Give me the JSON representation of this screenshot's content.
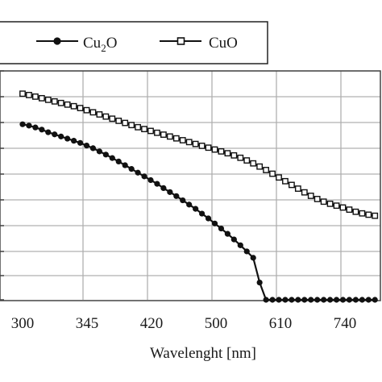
{
  "chart_data": {
    "type": "line",
    "title": "",
    "xlabel": "Wavelenght [nm]",
    "ylabel": "",
    "x_tick_labels": [
      "300",
      "345",
      "420",
      "500",
      "610",
      "740"
    ],
    "grid": true,
    "legend_position": "top",
    "series": [
      {
        "name_main": "Cu",
        "name_sub": "2",
        "name_tail": "O",
        "marker": "filled-circle",
        "color": "#111111",
        "values": [
          0.66,
          0.655,
          0.648,
          0.64,
          0.63,
          0.622,
          0.614,
          0.606,
          0.598,
          0.59,
          0.58,
          0.57,
          0.558,
          0.546,
          0.533,
          0.52,
          0.506,
          0.492,
          0.478,
          0.464,
          0.45,
          0.436,
          0.42,
          0.405,
          0.39,
          0.374,
          0.358,
          0.342,
          0.324,
          0.306,
          0.287,
          0.268,
          0.248,
          0.227,
          0.205,
          0.182,
          0.158,
          0.065,
          0.0,
          0.0,
          0.0,
          0.0,
          0.0,
          0.0,
          0.0,
          0.0,
          0.0,
          0.0,
          0.0,
          0.0,
          0.0,
          0.0,
          0.0,
          0.0,
          0.0,
          0.0
        ]
      },
      {
        "name_main": "CuO",
        "name_sub": "",
        "name_tail": "",
        "marker": "open-square",
        "color": "#111111",
        "values": [
          0.775,
          0.77,
          0.764,
          0.758,
          0.752,
          0.746,
          0.74,
          0.734,
          0.728,
          0.721,
          0.713,
          0.705,
          0.697,
          0.689,
          0.681,
          0.673,
          0.665,
          0.657,
          0.649,
          0.642,
          0.635,
          0.628,
          0.621,
          0.614,
          0.607,
          0.6,
          0.593,
          0.586,
          0.579,
          0.572,
          0.565,
          0.558,
          0.551,
          0.543,
          0.534,
          0.524,
          0.513,
          0.501,
          0.488,
          0.474,
          0.46,
          0.446,
          0.432,
          0.418,
          0.404,
          0.391,
          0.379,
          0.369,
          0.361,
          0.354,
          0.347,
          0.339,
          0.331,
          0.325,
          0.32,
          0.316
        ]
      }
    ]
  }
}
